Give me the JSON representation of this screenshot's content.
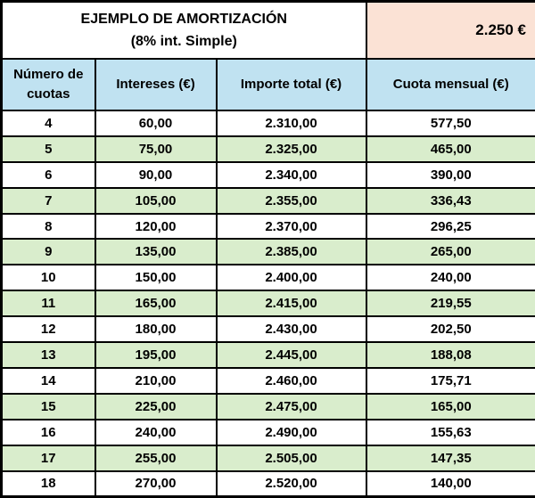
{
  "title": {
    "line1": "EJEMPLO DE AMORTIZACIÓN",
    "line2": "(8% int. Simple)"
  },
  "principal_amount": "2.250 €",
  "colors": {
    "header_fill": "#C0E2F1",
    "alt_row_fill": "#D9EDCC",
    "principal_fill": "#FBE2D5",
    "border": "#000000",
    "text": "#000000"
  },
  "chart_data": {
    "type": "table",
    "title": "EJEMPLO DE AMORTIZACIÓN (8% int. Simple)",
    "principal": "2.250 €",
    "columns": [
      "Número de cuotas",
      "Intereses (€)",
      "Importe total (€)",
      "Cuota mensual (€)"
    ],
    "rows": [
      [
        "4",
        "60,00",
        "2.310,00",
        "577,50"
      ],
      [
        "5",
        "75,00",
        "2.325,00",
        "465,00"
      ],
      [
        "6",
        "90,00",
        "2.340,00",
        "390,00"
      ],
      [
        "7",
        "105,00",
        "2.355,00",
        "336,43"
      ],
      [
        "8",
        "120,00",
        "2.370,00",
        "296,25"
      ],
      [
        "9",
        "135,00",
        "2.385,00",
        "265,00"
      ],
      [
        "10",
        "150,00",
        "2.400,00",
        "240,00"
      ],
      [
        "11",
        "165,00",
        "2.415,00",
        "219,55"
      ],
      [
        "12",
        "180,00",
        "2.430,00",
        "202,50"
      ],
      [
        "13",
        "195,00",
        "2.445,00",
        "188,08"
      ],
      [
        "14",
        "210,00",
        "2.460,00",
        "175,71"
      ],
      [
        "15",
        "225,00",
        "2.475,00",
        "165,00"
      ],
      [
        "16",
        "240,00",
        "2.490,00",
        "155,63"
      ],
      [
        "17",
        "255,00",
        "2.505,00",
        "147,35"
      ],
      [
        "18",
        "270,00",
        "2.520,00",
        "140,00"
      ]
    ]
  }
}
